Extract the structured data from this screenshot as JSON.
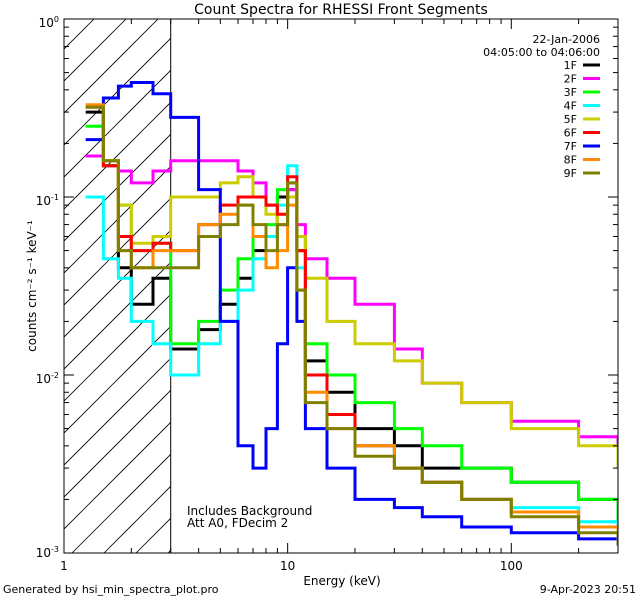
{
  "chart_data": {
    "type": "line",
    "step": true,
    "title": "Count Spectra for RHESSI Front Segments",
    "xlabel": "Energy (keV)",
    "ylabel": "counts cm⁻² s⁻¹ keV⁻¹",
    "xscale": "log",
    "yscale": "log",
    "xlim": [
      1,
      300
    ],
    "ylim": [
      0.001,
      1
    ],
    "x_tick_labels": [
      {
        "value": 1,
        "label": "1"
      },
      {
        "value": 10,
        "label": "10"
      },
      {
        "value": 100,
        "label": "100"
      }
    ],
    "y_tick_labels": [
      {
        "value": 1,
        "base": "10",
        "exp": "0"
      },
      {
        "value": 0.1,
        "base": "10",
        "exp": "-1"
      },
      {
        "value": 0.01,
        "base": "10",
        "exp": "-2"
      },
      {
        "value": 0.001,
        "base": "10",
        "exp": "-3"
      }
    ],
    "legend_header": [
      "22-Jan-2006",
      "04:05:00 to 04:06:00"
    ],
    "legend_placement": "top-right",
    "annotations": [
      "Includes Background",
      "Att A0, FDecim 2"
    ],
    "shaded_region": {
      "x_from": 1,
      "x_to": 3,
      "pattern": "diagonal-hatch"
    },
    "x": [
      1.25,
      1.5,
      1.75,
      2.0,
      2.5,
      3.0,
      4.0,
      5.0,
      6.0,
      7.0,
      8.0,
      9.0,
      10.0,
      11.0,
      12.0,
      15.0,
      20.0,
      30.0,
      40.0,
      60.0,
      100.0,
      200.0,
      300.0
    ],
    "series": [
      {
        "name": "1F",
        "color": "#000000",
        "values": [
          0.3,
          0.15,
          0.04,
          0.025,
          0.035,
          0.014,
          0.018,
          0.025,
          0.035,
          0.05,
          0.06,
          0.1,
          0.11,
          0.05,
          0.012,
          0.008,
          0.005,
          0.004,
          0.003,
          0.003,
          0.0025,
          0.002,
          0.0015
        ]
      },
      {
        "name": "2F",
        "color": "#ff00ff",
        "values": [
          0.17,
          0.16,
          0.14,
          0.12,
          0.14,
          0.16,
          0.16,
          0.16,
          0.14,
          0.12,
          0.09,
          0.07,
          0.11,
          0.07,
          0.045,
          0.035,
          0.025,
          0.014,
          0.009,
          0.007,
          0.0055,
          0.0045,
          0.0035
        ]
      },
      {
        "name": "3F",
        "color": "#00ff00",
        "values": [
          0.25,
          0.16,
          0.09,
          0.05,
          0.055,
          0.015,
          0.02,
          0.03,
          0.045,
          0.06,
          0.07,
          0.11,
          0.12,
          0.06,
          0.015,
          0.01,
          0.007,
          0.005,
          0.004,
          0.003,
          0.0025,
          0.002,
          0.0015
        ]
      },
      {
        "name": "4F",
        "color": "#00ffff",
        "values": [
          0.1,
          0.045,
          0.035,
          0.02,
          0.015,
          0.01,
          0.015,
          0.02,
          0.03,
          0.045,
          0.06,
          0.09,
          0.15,
          0.04,
          0.01,
          0.006,
          0.004,
          0.003,
          0.0025,
          0.002,
          0.0018,
          0.0015,
          0.0012
        ]
      },
      {
        "name": "5F",
        "color": "#cccc00",
        "values": [
          0.32,
          0.16,
          0.09,
          0.055,
          0.06,
          0.1,
          0.1,
          0.12,
          0.13,
          0.1,
          0.08,
          0.07,
          0.1,
          0.06,
          0.035,
          0.02,
          0.015,
          0.012,
          0.009,
          0.007,
          0.005,
          0.004,
          0.003
        ]
      },
      {
        "name": "6F",
        "color": "#ff0000",
        "values": [
          0.32,
          0.15,
          0.06,
          0.05,
          0.055,
          0.05,
          0.07,
          0.09,
          0.1,
          0.1,
          0.09,
          0.08,
          0.13,
          0.05,
          0.01,
          0.006,
          0.004,
          0.003,
          0.0025,
          0.002,
          0.0017,
          0.0014,
          0.0012
        ]
      },
      {
        "name": "7F",
        "color": "#0000ff",
        "values": [
          0.21,
          0.36,
          0.42,
          0.44,
          0.38,
          0.28,
          0.11,
          0.02,
          0.004,
          0.003,
          0.005,
          0.015,
          0.04,
          0.02,
          0.005,
          0.003,
          0.002,
          0.0018,
          0.0016,
          0.0014,
          0.0013,
          0.0012,
          0.0011
        ]
      },
      {
        "name": "8F",
        "color": "#ff8c00",
        "values": [
          0.33,
          0.16,
          0.05,
          0.04,
          0.05,
          0.05,
          0.07,
          0.08,
          0.09,
          0.06,
          0.04,
          0.05,
          0.09,
          0.03,
          0.008,
          0.005,
          0.004,
          0.003,
          0.0025,
          0.002,
          0.0017,
          0.0014,
          0.0012
        ]
      },
      {
        "name": "9F",
        "color": "#808000",
        "values": [
          0.32,
          0.16,
          0.05,
          0.04,
          0.04,
          0.04,
          0.06,
          0.07,
          0.09,
          0.07,
          0.05,
          0.07,
          0.12,
          0.03,
          0.007,
          0.005,
          0.0035,
          0.003,
          0.0025,
          0.002,
          0.0016,
          0.0013,
          0.0011
        ]
      }
    ]
  },
  "footer": {
    "generated_by": "Generated by hsi_min_spectra_plot.pro",
    "timestamp": "9-Apr-2023 20:51"
  }
}
